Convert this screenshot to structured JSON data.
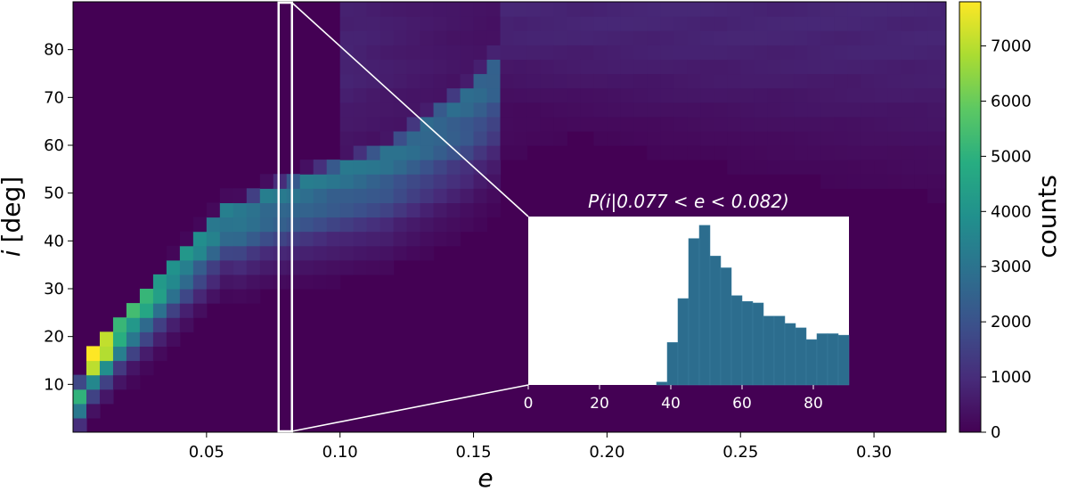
{
  "chart_data": [
    {
      "type": "heatmap",
      "xlabel": "e",
      "ylabel_var": "i",
      "ylabel_unit": "[deg]",
      "xlim": [
        0.0,
        0.327
      ],
      "ylim": [
        0,
        90
      ],
      "xticks": [
        0.05,
        0.1,
        0.15,
        0.2,
        0.25,
        0.3
      ],
      "xtick_labels": [
        "0.05",
        "0.10",
        "0.15",
        "0.20",
        "0.25",
        "0.30"
      ],
      "yticks": [
        10,
        20,
        30,
        40,
        50,
        60,
        70,
        80
      ],
      "ytick_labels": [
        "10",
        "20",
        "30",
        "40",
        "50",
        "60",
        "70",
        "80"
      ],
      "colormap": "viridis",
      "color_scale_range": [
        0,
        7800
      ],
      "colorbar_label": "counts",
      "colorbar_ticks": [
        0,
        1000,
        2000,
        3000,
        4000,
        5000,
        6000,
        7000
      ],
      "colorbar_tick_labels": [
        "0",
        "1000",
        "2000",
        "3000",
        "4000",
        "5000",
        "6000",
        "7000"
      ],
      "highlight_band": {
        "e_min": 0.077,
        "e_max": 0.082
      },
      "peak_cells": [
        {
          "e": 0.0025,
          "i": 9,
          "count": 5000
        },
        {
          "e": 0.0025,
          "i": 6,
          "count": 3600
        },
        {
          "e": 0.0025,
          "i": 3,
          "count": 2200
        },
        {
          "e": 0.0075,
          "i": 16,
          "count": 7800
        },
        {
          "e": 0.0075,
          "i": 13,
          "count": 5600
        },
        {
          "e": 0.0125,
          "i": 19,
          "count": 7200
        },
        {
          "e": 0.0175,
          "i": 22,
          "count": 5400
        },
        {
          "e": 0.0225,
          "i": 25,
          "count": 5000
        },
        {
          "e": 0.0275,
          "i": 28,
          "count": 4800
        },
        {
          "e": 0.0325,
          "i": 31,
          "count": 4400
        },
        {
          "e": 0.0375,
          "i": 34,
          "count": 4000
        },
        {
          "e": 0.0425,
          "i": 37,
          "count": 3800
        },
        {
          "e": 0.0475,
          "i": 40,
          "count": 3600
        },
        {
          "e": 0.0525,
          "i": 43,
          "count": 3400
        },
        {
          "e": 0.0575,
          "i": 46,
          "count": 3300
        },
        {
          "e": 0.0625,
          "i": 46,
          "count": 3200
        },
        {
          "e": 0.0725,
          "i": 49,
          "count": 3100
        },
        {
          "e": 0.0875,
          "i": 52,
          "count": 3000
        },
        {
          "e": 0.1025,
          "i": 55,
          "count": 2900
        },
        {
          "e": 0.1175,
          "i": 58,
          "count": 2800
        },
        {
          "e": 0.1325,
          "i": 64,
          "count": 2700
        },
        {
          "e": 0.1475,
          "i": 70,
          "count": 2600
        },
        {
          "e": 0.1625,
          "i": 79,
          "count": 2400
        }
      ]
    },
    {
      "type": "histogram",
      "title_var": "P(i|0.077 < e < 0.082)",
      "xlim": [
        0,
        90
      ],
      "xticks": [
        0,
        20,
        40,
        60,
        80
      ],
      "xtick_labels": [
        "0",
        "20",
        "40",
        "60",
        "80"
      ],
      "bin_width": 3,
      "bin_starts": [
        36,
        39,
        42,
        45,
        48,
        51,
        54,
        57,
        60,
        63,
        66,
        69,
        72,
        75,
        78,
        81,
        84,
        87
      ],
      "values": [
        0.02,
        0.29,
        0.59,
        1.0,
        1.09,
        0.88,
        0.8,
        0.61,
        0.57,
        0.56,
        0.47,
        0.47,
        0.42,
        0.39,
        0.31,
        0.35,
        0.35,
        0.34
      ]
    }
  ]
}
